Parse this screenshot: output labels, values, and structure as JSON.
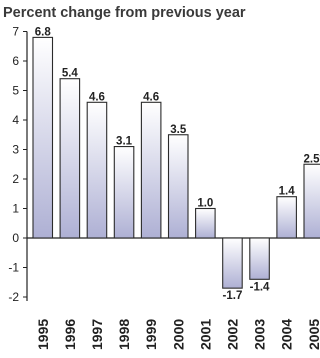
{
  "chart_data": {
    "type": "bar",
    "title": "Percent change from previous year",
    "categories": [
      "1995",
      "1996",
      "1997",
      "1998",
      "1999",
      "2000",
      "2001",
      "2002",
      "2003",
      "2004",
      "2005"
    ],
    "values": [
      6.8,
      5.4,
      4.6,
      3.1,
      4.6,
      3.5,
      1.0,
      -1.7,
      -1.4,
      1.4,
      2.5
    ],
    "data_labels": [
      "6.8",
      "5.4",
      "4.6",
      "3.1",
      "4.6",
      "3.5",
      "1.0",
      "-1.7",
      "-1.4",
      "1.4",
      "2.5*"
    ],
    "yticks": [
      7,
      6,
      5,
      4,
      3,
      2,
      1,
      0,
      -1,
      -2
    ],
    "ylim": [
      -2,
      7
    ],
    "grid": false,
    "colors": {
      "bar_top": "#ffffff",
      "bar_bottom": "#aeb0d4",
      "stroke": "#2b2b2b",
      "axis": "#222222"
    }
  }
}
